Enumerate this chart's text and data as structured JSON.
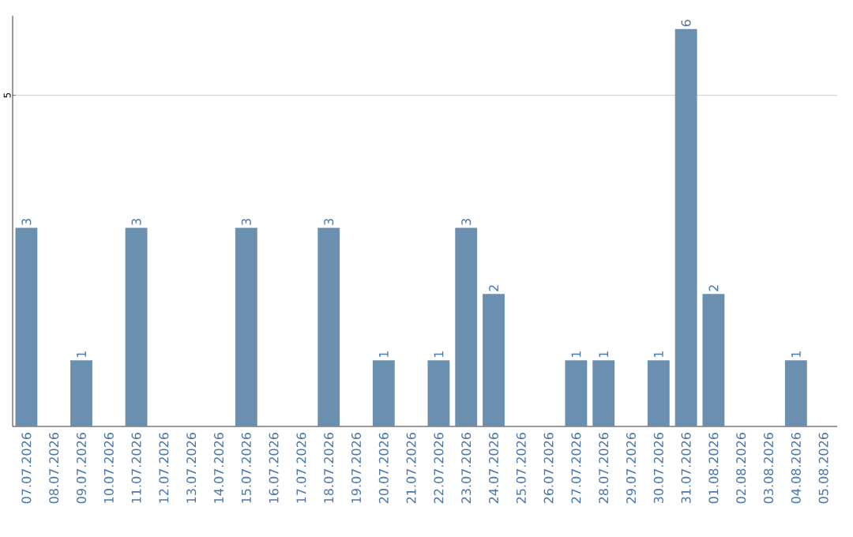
{
  "chart_data": {
    "type": "bar",
    "categories": [
      "07.07.2026",
      "08.07.2026",
      "09.07.2026",
      "10.07.2026",
      "11.07.2026",
      "12.07.2026",
      "13.07.2026",
      "14.07.2026",
      "15.07.2026",
      "16.07.2026",
      "17.07.2026",
      "18.07.2026",
      "19.07.2026",
      "20.07.2026",
      "21.07.2026",
      "22.07.2026",
      "23.07.2026",
      "24.07.2026",
      "25.07.2026",
      "26.07.2026",
      "27.07.2026",
      "28.07.2026",
      "29.07.2026",
      "30.07.2026",
      "31.07.2026",
      "01.08.2026",
      "02.08.2026",
      "03.08.2026",
      "04.08.2026",
      "05.08.2026"
    ],
    "values": [
      3,
      0,
      1,
      0,
      3,
      0,
      0,
      0,
      3,
      0,
      0,
      3,
      0,
      1,
      0,
      1,
      3,
      2,
      0,
      0,
      1,
      1,
      0,
      1,
      6,
      2,
      0,
      0,
      1,
      0
    ],
    "value_labels": [
      "3",
      null,
      "1",
      null,
      "3",
      null,
      null,
      null,
      "3",
      null,
      null,
      "3",
      null,
      "1",
      null,
      "1",
      "3",
      "2",
      null,
      null,
      "1",
      "1",
      null,
      "1",
      "6",
      "2",
      null,
      null,
      "1",
      null
    ],
    "color": "#6b8fae",
    "ylim": [
      0,
      6.2
    ],
    "yticks": [
      5
    ],
    "grid": "y"
  }
}
